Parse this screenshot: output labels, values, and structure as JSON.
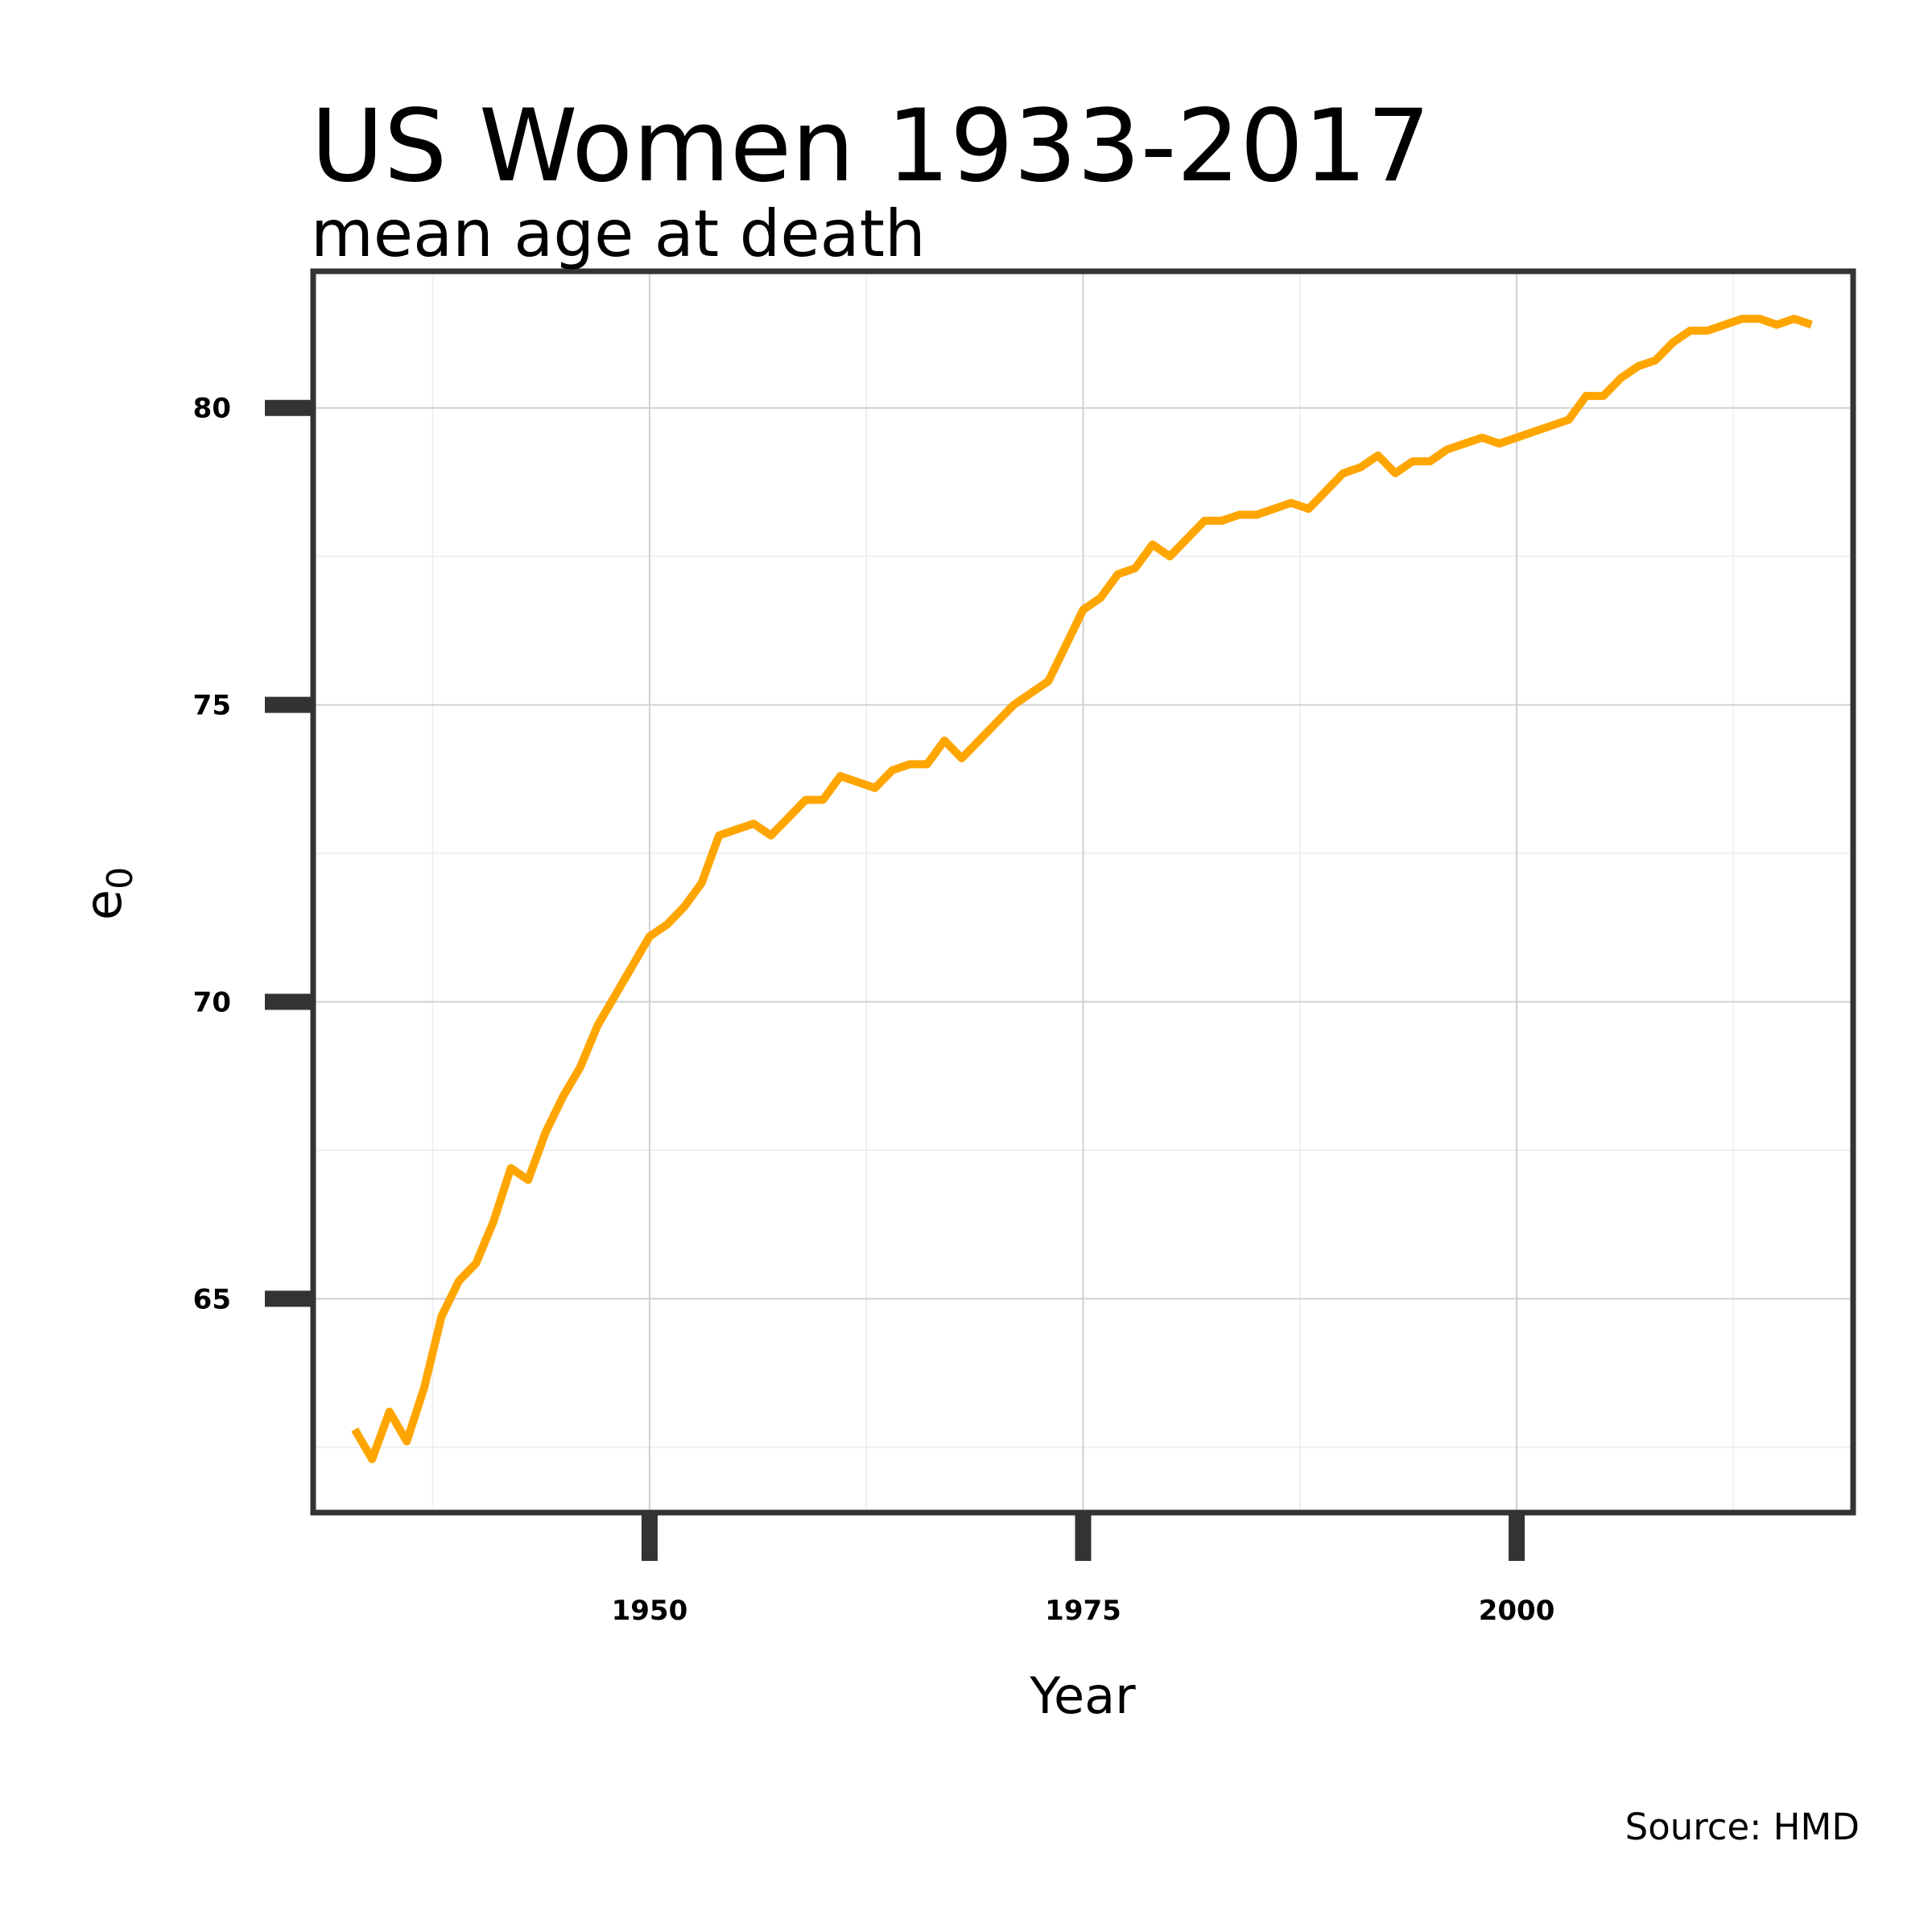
{
  "chart_data": {
    "type": "line",
    "title": "US Women 1933-2017",
    "subtitle": "mean age at death",
    "xlabel": "Year",
    "ylabel": "e",
    "ylabel_subscript": "0",
    "caption": "Source: HMD",
    "xlim": [
      1930.6,
      2019.4
    ],
    "ylim": [
      61.4,
      82.3
    ],
    "x_ticks": [
      1950,
      1975,
      2000
    ],
    "y_ticks": [
      65,
      70,
      75,
      80
    ],
    "grid": true,
    "line_color": "#ffa500",
    "series": [
      {
        "x": [
          1933,
          1934,
          1935,
          1936,
          1937,
          1938,
          1939,
          1940,
          1941,
          1942,
          1943,
          1944,
          1945,
          1946,
          1947,
          1948,
          1949,
          1950,
          1951,
          1952,
          1953,
          1954,
          1955,
          1956,
          1957,
          1958,
          1959,
          1960,
          1961,
          1962,
          1963,
          1964,
          1965,
          1966,
          1967,
          1968,
          1969,
          1970,
          1971,
          1972,
          1973,
          1974,
          1975,
          1976,
          1977,
          1978,
          1979,
          1980,
          1981,
          1982,
          1983,
          1984,
          1985,
          1986,
          1987,
          1988,
          1989,
          1990,
          1991,
          1992,
          1993,
          1994,
          1995,
          1996,
          1997,
          1998,
          1999,
          2000,
          2001,
          2002,
          2003,
          2004,
          2005,
          2006,
          2007,
          2008,
          2009,
          2010,
          2011,
          2012,
          2013,
          2014,
          2015,
          2016,
          2017
        ],
        "values": [
          62.8,
          62.3,
          63.1,
          62.6,
          63.5,
          64.7,
          65.3,
          65.6,
          66.3,
          67.2,
          67.0,
          67.8,
          68.4,
          68.9,
          69.6,
          70.1,
          70.6,
          71.1,
          71.3,
          71.6,
          72.0,
          72.8,
          72.9,
          73.0,
          72.8,
          73.1,
          73.4,
          73.4,
          73.8,
          73.7,
          73.6,
          73.9,
          74.0,
          74.0,
          74.4,
          74.1,
          74.4,
          74.7,
          75.0,
          75.2,
          75.4,
          76.0,
          76.6,
          76.8,
          77.2,
          77.3,
          77.7,
          77.5,
          77.8,
          78.1,
          78.1,
          78.2,
          78.2,
          78.3,
          78.4,
          78.3,
          78.6,
          78.9,
          79.0,
          79.2,
          78.9,
          79.1,
          79.1,
          79.3,
          79.4,
          79.5,
          79.4,
          79.5,
          79.6,
          79.7,
          79.8,
          80.2,
          80.2,
          80.5,
          80.7,
          80.8,
          81.1,
          81.3,
          81.3,
          81.4,
          81.5,
          81.5,
          81.4,
          81.5,
          81.4
        ]
      }
    ]
  }
}
